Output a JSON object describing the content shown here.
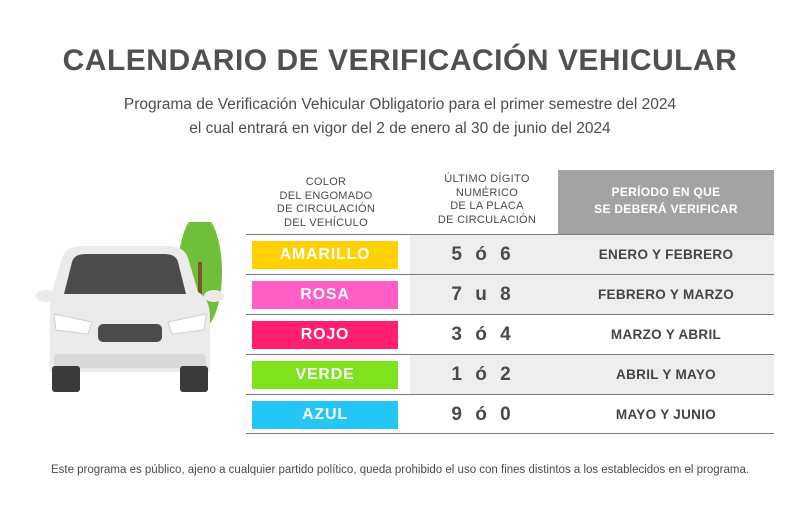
{
  "title": "CALENDARIO DE VERIFICACIÓN VEHICULAR",
  "subtitle_line1": "Programa de Verificación Vehicular Obligatorio para el primer semestre del 2024",
  "subtitle_line2": "el cual entrará en vigor del 2 de enero al 30 de junio del 2024",
  "table": {
    "headers": {
      "color": [
        "COLOR",
        "DEL ENGOMADO",
        "DE CIRCULACIÓN",
        "DEL VEHÍCULO"
      ],
      "digito": [
        "ÚLTIMO DÍGITO",
        "NUMÉRICO",
        "DE LA PLACA",
        "DE CIRCULACIÓN"
      ],
      "periodo": [
        "PERÍODO EN QUE",
        "SE DEBERÁ VERIFICAR"
      ]
    },
    "rows": [
      {
        "color": "AMARILLO",
        "color_hex": "#ffd100",
        "digitos": "5 ó 6",
        "periodo": "ENERO Y FEBRERO"
      },
      {
        "color": "ROSA",
        "color_hex": "#ff5ec4",
        "digitos": "7 u 8",
        "periodo": "FEBRERO Y MARZO"
      },
      {
        "color": "ROJO",
        "color_hex": "#ff1f6e",
        "digitos": "3 ó 4",
        "periodo": "MARZO Y ABRIL"
      },
      {
        "color": "VERDE",
        "color_hex": "#7ee21e",
        "digitos": "1 ó 2",
        "periodo": "ABRIL Y MAYO"
      },
      {
        "color": "AZUL",
        "color_hex": "#22c7f5",
        "digitos": "9 ó 0",
        "periodo": "MAYO Y JUNIO"
      }
    ]
  },
  "illustration": {
    "icons": [
      "car-icon",
      "tree-icon"
    ]
  },
  "footer": "Este programa es público, ajeno a cualquier partido político, queda prohibido el uso con fines distintos a los establecidos en el programa."
}
